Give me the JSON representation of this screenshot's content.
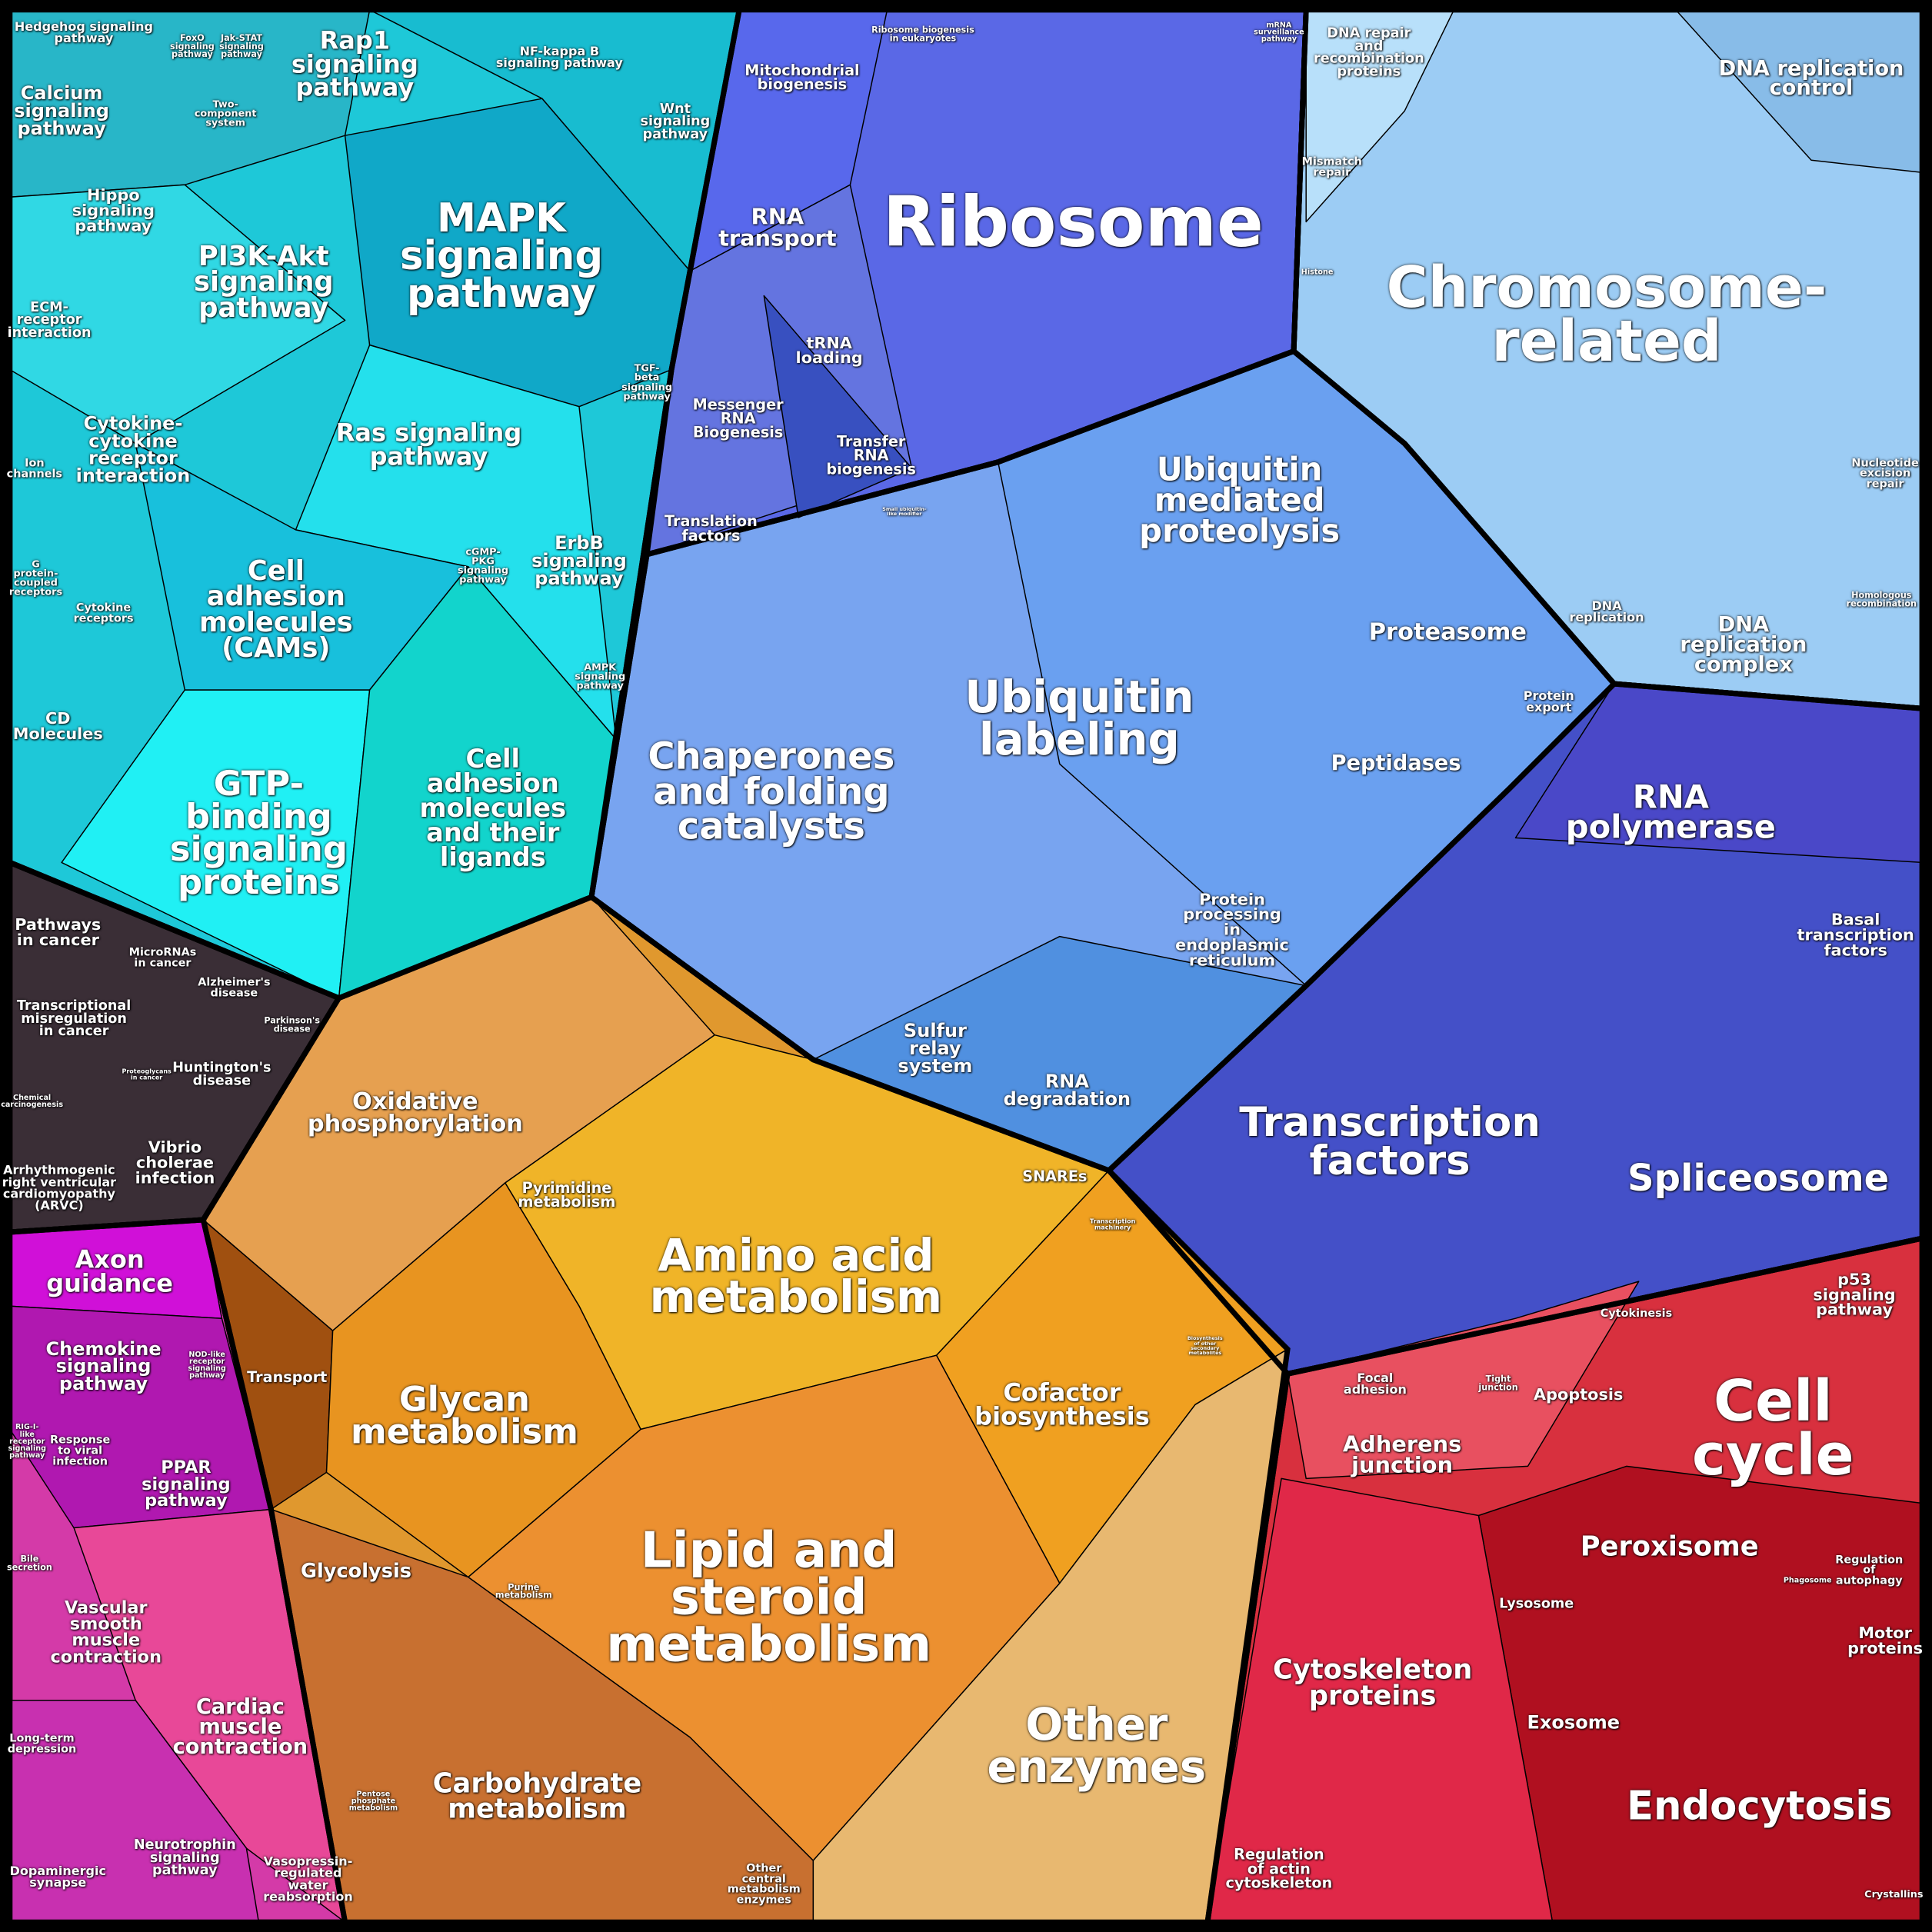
{
  "labels": [
    "Hedgehog signaling\npathway",
    "FoxO\nsignaling\npathway",
    "Jak-STAT\nsignaling\npathway",
    "Rap1\nsignaling\npathway",
    "NF-kappa B\nsignaling pathway",
    "Calcium\nsignaling\npathway",
    "Two-\ncomponent\nsystem",
    "Wnt\nsignaling\npathway",
    "Hippo\nsignaling\npathway",
    "MAPK\nsignaling\npathway",
    "PI3K-Akt\nsignaling\npathway",
    "ECM-\nreceptor\ninteraction",
    "TGF-\nbeta\nsignaling\npathway",
    "Cytokine-\ncytokine\nreceptor\ninteraction",
    "Ras signaling\npathway",
    "Ion\nchannels",
    "cGMP-\nPKG\nsignaling\npathway",
    "ErbB\nsignaling\npathway",
    "Cell\nadhesion\nmolecules\n(CAMs)",
    "G\nprotein-\ncoupled\nreceptors",
    "Cytokine\nreceptors",
    "AMPK\nsignaling\npathway",
    "CD\nMolecules",
    "GTP-\nbinding\nsignaling\nproteins",
    "Cell\nadhesion\nmolecules\nand their\nligands",
    "Pathways\nin cancer",
    "MicroRNAs\nin cancer",
    "Alzheimer's\ndisease",
    "Transcriptional\nmisregulation\nin cancer",
    "Parkinson's\ndisease",
    "Proteoglycans\nin cancer",
    "Huntington's\ndisease",
    "Chemical\ncarcinogenesis",
    "Vibrio\ncholerae\ninfection",
    "Arrhythmogenic\nright ventricular\ncardiomyopathy\n(ARVC)",
    "Axon\nguidance",
    "Chemokine\nsignaling\npathway",
    "NOD-like\nreceptor\nsignaling\npathway",
    "RIG-I-\nlike\nreceptor\nsignaling\npathway",
    "Response\nto viral\ninfection",
    "PPAR\nsignaling\npathway",
    "Bile\nsecretion",
    "Vascular\nsmooth\nmuscle\ncontraction",
    "Cardiac\nmuscle\ncontraction",
    "Long-term\ndepression",
    "Neurotrophin\nsignaling\npathway",
    "Dopaminergic\nsynapse",
    "Vasopressin-\nregulated\nwater\nreabsorption",
    "Oxidative\nphosphorylation",
    "Pyrimidine\nmetabolism",
    "Amino acid\nmetabolism",
    "Transport",
    "Glycan\nmetabolism",
    "Cofactor\nbiosynthesis",
    "Biosynthesis\nof other\nsecondary\nmetabolites",
    "Glycolysis",
    "Purine\nmetabolism",
    "Lipid and\nsteroid\nmetabolism",
    "Other\nenzymes",
    "Pentose\nphosphate\nmetabolism",
    "Carbohydrate\nmetabolism",
    "Other\ncentral\nmetabolism\nenzymes",
    "Mitochondrial\nbiogenesis",
    "Ribosome biogenesis\nin eukaryotes",
    "mRNA\nsurveillance\npathway",
    "RNA\ntransport",
    "Ribosome",
    "tRNA\nloading",
    "Messenger\nRNA\nBiogenesis",
    "Transfer\nRNA\nbiogenesis",
    "Translation\nfactors",
    "Small ubiquitin-\nlike modifier",
    "Ubiquitin\nmediated\nproteolysis",
    "Proteasome",
    "Ubiquitin\nlabeling",
    "Chaperones\nand folding\ncatalysts",
    "Protein\nexport",
    "Peptidases",
    "Protein\nprocessing\nin\nendoplasmic\nreticulum",
    "Sulfur\nrelay\nsystem",
    "RNA\ndegradation",
    "SNAREs",
    "DNA repair\nand\nrecombination\nproteins",
    "DNA replication\ncontrol",
    "Mismatch\nrepair",
    "Histone",
    "Chromosome-\nrelated",
    "Nucleotide\nexcision\nrepair",
    "Homologous\nrecombination",
    "DNA\nreplication",
    "DNA\nreplication\ncomplex",
    "RNA\npolymerase",
    "Basal\ntranscription\nfactors",
    "Transcription\nfactors",
    "Spliceosome",
    "Transcription\nmachinery",
    "p53\nsignaling\npathway",
    "Cytokinesis",
    "Focal\nadhesion",
    "Tight\njunction",
    "Apoptosis",
    "Cell\ncycle",
    "Adherens\njunction",
    "Peroxisome",
    "Phagosome",
    "Regulation\nof\nautophagy",
    "Lysosome",
    "Motor\nproteins",
    "Cytoskeleton\nproteins",
    "Exosome",
    "Endocytosis",
    "Regulation\nof actin\ncytoskeleton",
    "Crystallins"
  ]
}
